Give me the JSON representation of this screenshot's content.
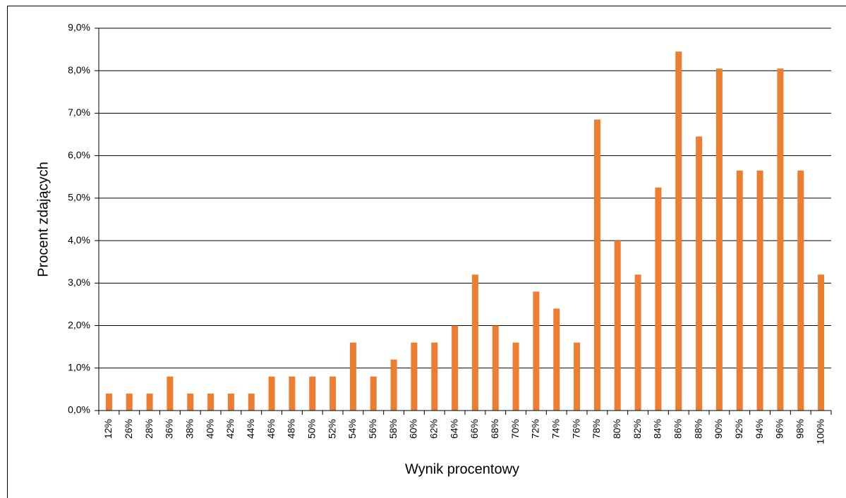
{
  "chart_data": {
    "type": "bar",
    "xlabel": "Wynik procentowy",
    "ylabel": "Procent zdających",
    "categories": [
      "12%",
      "26%",
      "28%",
      "36%",
      "38%",
      "40%",
      "42%",
      "44%",
      "46%",
      "48%",
      "50%",
      "52%",
      "54%",
      "56%",
      "58%",
      "60%",
      "62%",
      "64%",
      "66%",
      "68%",
      "70%",
      "72%",
      "74%",
      "76%",
      "78%",
      "80%",
      "82%",
      "84%",
      "86%",
      "88%",
      "90%",
      "92%",
      "94%",
      "96%",
      "98%",
      "100%"
    ],
    "values": [
      0.4,
      0.4,
      0.4,
      0.8,
      0.4,
      0.4,
      0.4,
      0.4,
      0.8,
      0.8,
      0.8,
      0.8,
      1.6,
      0.8,
      1.2,
      1.6,
      1.6,
      2.0,
      3.2,
      2.0,
      1.6,
      2.8,
      2.4,
      1.6,
      6.85,
      4.0,
      3.2,
      5.25,
      8.45,
      6.45,
      8.05,
      5.65,
      5.65,
      8.05,
      5.65,
      3.2
    ],
    "color": "#ed7d31",
    "ylim": [
      0,
      9
    ],
    "yticks": [
      {
        "value": 0,
        "label": "0,0%"
      },
      {
        "value": 1,
        "label": "1,0%"
      },
      {
        "value": 2,
        "label": "2,0%"
      },
      {
        "value": 3,
        "label": "3,0%"
      },
      {
        "value": 4,
        "label": "4,0%"
      },
      {
        "value": 5,
        "label": "5,0%"
      },
      {
        "value": 6,
        "label": "6,0%"
      },
      {
        "value": 7,
        "label": "7,0%"
      },
      {
        "value": 8,
        "label": "8,0%"
      },
      {
        "value": 9,
        "label": "9,0%"
      }
    ],
    "grid": true
  }
}
